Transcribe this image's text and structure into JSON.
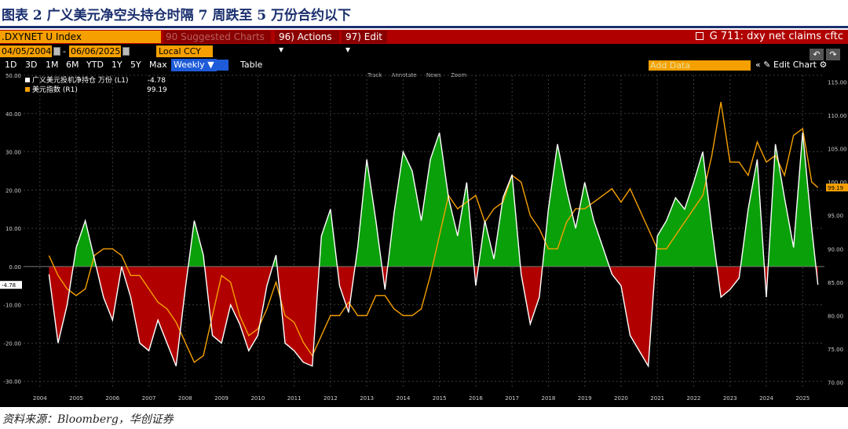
{
  "figure_title": "图表 2  广义美元净空头持仓时隔 7 周跌至 5 万份合约以下",
  "source": "资料来源：Bloomberg，华创证券",
  "terminal": {
    "ticker": ".DXYNET U Index",
    "suggested": "90 Suggested Charts  ▾",
    "actions": "96) Actions  ▾",
    "edit": "97) Edit  ▾",
    "chart_title": "G 711: dxy net claims cftc",
    "start_date": "04/05/2004",
    "end_date": "06/06/2025",
    "currency": "Local CCY",
    "dash": "-",
    "periods": [
      "1D",
      "3D",
      "1M",
      "6M",
      "YTD",
      "1Y",
      "5Y",
      "Max"
    ],
    "frequency": "Weekly ▼",
    "table_label": "Table",
    "add_data_placeholder": "Add Data",
    "right_controls": "«  ✎ Edit Chart  ⚙",
    "nav_back": "↶",
    "nav_forward": "↷",
    "tools": [
      "Track",
      "Annotate",
      "News",
      "Zoom"
    ]
  },
  "colors": {
    "position_line": "#ffffff",
    "positive_fill": "#0aa00a",
    "negative_fill": "#b10000",
    "dollar_index_line": "#f5a000",
    "background": "#000000"
  },
  "chart_data": {
    "type": "line",
    "series": [
      {
        "name": "广义美元投机净持仓 万份 (L1)",
        "last_value": "-4.78",
        "axis": "left",
        "x": [
          2004.25,
          2004.5,
          2004.75,
          2005.0,
          2005.25,
          2005.5,
          2005.75,
          2006.0,
          2006.25,
          2006.5,
          2006.75,
          2007.0,
          2007.25,
          2007.5,
          2007.75,
          2008.0,
          2008.25,
          2008.5,
          2008.75,
          2009.0,
          2009.25,
          2009.5,
          2009.75,
          2010.0,
          2010.25,
          2010.5,
          2010.75,
          2011.0,
          2011.25,
          2011.5,
          2011.75,
          2012.0,
          2012.25,
          2012.5,
          2012.75,
          2013.0,
          2013.25,
          2013.5,
          2013.75,
          2014.0,
          2014.25,
          2014.5,
          2014.75,
          2015.0,
          2015.25,
          2015.5,
          2015.75,
          2016.0,
          2016.25,
          2016.5,
          2016.75,
          2017.0,
          2017.25,
          2017.5,
          2017.75,
          2018.0,
          2018.25,
          2018.5,
          2018.75,
          2019.0,
          2019.25,
          2019.5,
          2019.75,
          2020.0,
          2020.25,
          2020.5,
          2020.75,
          2021.0,
          2021.25,
          2021.5,
          2021.75,
          2022.0,
          2022.25,
          2022.5,
          2022.75,
          2023.0,
          2023.25,
          2023.5,
          2023.75,
          2024.0,
          2024.25,
          2024.5,
          2024.75,
          2025.0,
          2025.25,
          2025.42
        ],
        "y": [
          -2,
          -20,
          -10,
          5,
          12,
          2,
          -8,
          -14,
          0,
          -8,
          -20,
          -22,
          -14,
          -20,
          -26,
          -6,
          12,
          3,
          -18,
          -20,
          -10,
          -15,
          -22,
          -18,
          -5,
          3,
          -20,
          -22,
          -25,
          -26,
          8,
          15,
          -5,
          -12,
          5,
          28,
          12,
          -6,
          14,
          30,
          25,
          12,
          28,
          35,
          18,
          8,
          22,
          -5,
          12,
          2,
          18,
          24,
          -2,
          -15,
          -8,
          15,
          32,
          20,
          10,
          22,
          12,
          5,
          -2,
          -5,
          -18,
          -22,
          -26,
          8,
          12,
          18,
          15,
          22,
          30,
          10,
          -8,
          -6,
          -3,
          15,
          28,
          -8,
          32,
          18,
          5,
          35,
          10,
          -4.78
        ]
      },
      {
        "name": "美元指数 (R1)",
        "last_value": "99.19",
        "axis": "right",
        "x": [
          2004.25,
          2004.5,
          2004.75,
          2005.0,
          2005.25,
          2005.5,
          2005.75,
          2006.0,
          2006.25,
          2006.5,
          2006.75,
          2007.0,
          2007.25,
          2007.5,
          2007.75,
          2008.0,
          2008.25,
          2008.5,
          2008.75,
          2009.0,
          2009.25,
          2009.5,
          2009.75,
          2010.0,
          2010.25,
          2010.5,
          2010.75,
          2011.0,
          2011.25,
          2011.5,
          2011.75,
          2012.0,
          2012.25,
          2012.5,
          2012.75,
          2013.0,
          2013.25,
          2013.5,
          2013.75,
          2014.0,
          2014.25,
          2014.5,
          2014.75,
          2015.0,
          2015.25,
          2015.5,
          2015.75,
          2016.0,
          2016.25,
          2016.5,
          2016.75,
          2017.0,
          2017.25,
          2017.5,
          2017.75,
          2018.0,
          2018.25,
          2018.5,
          2018.75,
          2019.0,
          2019.25,
          2019.5,
          2019.75,
          2020.0,
          2020.25,
          2020.5,
          2020.75,
          2021.0,
          2021.25,
          2021.5,
          2021.75,
          2022.0,
          2022.25,
          2022.5,
          2022.75,
          2023.0,
          2023.25,
          2023.5,
          2023.75,
          2024.0,
          2024.25,
          2024.5,
          2024.75,
          2025.0,
          2025.25,
          2025.42
        ],
        "y": [
          89,
          86,
          84,
          83,
          84,
          89,
          90,
          90,
          89,
          86,
          86,
          84,
          82,
          81,
          79,
          76,
          73,
          74,
          80,
          86,
          85,
          80,
          77,
          78,
          81,
          85,
          80,
          79,
          76,
          74,
          77,
          80,
          80,
          82,
          80,
          80,
          83,
          83,
          81,
          80,
          80,
          81,
          86,
          92,
          98,
          96,
          97,
          98,
          94,
          96,
          97,
          101,
          100,
          95,
          93,
          90,
          90,
          94,
          96,
          96,
          97,
          98,
          99,
          97,
          99,
          96,
          93,
          90,
          90,
          92,
          94,
          96,
          98,
          104,
          112,
          103,
          103,
          101,
          106,
          103,
          104,
          101,
          107,
          108,
          100,
          99.19
        ]
      }
    ],
    "x_tick_labels": [
      "2004",
      "2005",
      "2006",
      "2007",
      "2008",
      "2009",
      "2010",
      "2011",
      "2012",
      "2013",
      "2014",
      "2015",
      "2016",
      "2017",
      "2018",
      "2019",
      "2020",
      "2021",
      "2022",
      "2023",
      "2024",
      "2025"
    ],
    "x_tick_values": [
      2004,
      2005,
      2006,
      2007,
      2008,
      2009,
      2010,
      2011,
      2012,
      2013,
      2014,
      2015,
      2016,
      2017,
      2018,
      2019,
      2020,
      2021,
      2022,
      2023,
      2024,
      2025
    ],
    "x_range": [
      2003.55,
      2025.6
    ],
    "left_ticks": [
      "50.00",
      "40.00",
      "30.00",
      "20.00",
      "10.00",
      "0.00",
      "-10.00",
      "-20.00",
      "-30.00"
    ],
    "left_tick_values": [
      50,
      40,
      30,
      20,
      10,
      0,
      -10,
      -20,
      -30
    ],
    "left_range": [
      -32,
      50
    ],
    "right_ticks": [
      "115.00",
      "110.00",
      "105.00",
      "100.00",
      "95.00",
      "90.00",
      "85.00",
      "80.00",
      "75.00",
      "70.00"
    ],
    "right_tick_values": [
      115,
      110,
      105,
      100,
      95,
      90,
      85,
      80,
      75,
      70
    ],
    "right_range": [
      69,
      116
    ],
    "last_label_left": "-4.78",
    "last_label_right": "99.19",
    "grid": true,
    "legend_position": "top-left"
  }
}
